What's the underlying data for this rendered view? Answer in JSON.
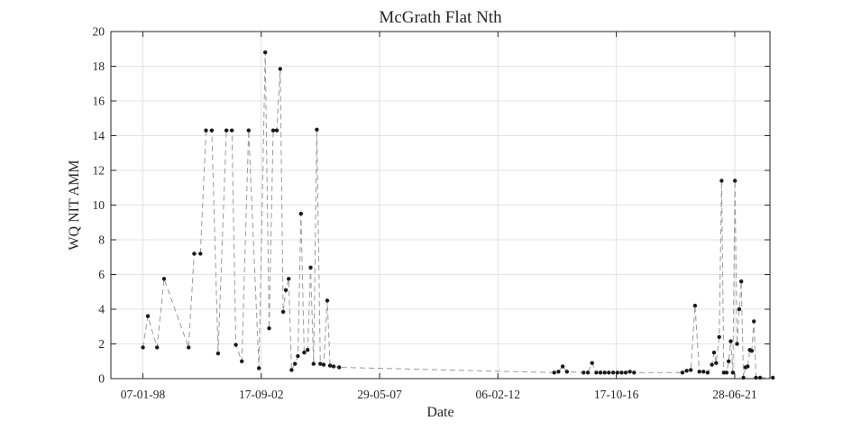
{
  "chart_data": {
    "type": "scatter",
    "title": "McGrath Flat Nth",
    "xlabel": "Date",
    "ylabel": "WQ NIT AMM",
    "x_scale": "date",
    "xlim": [
      "1996-10-01",
      "2022-11-20"
    ],
    "ylim": [
      0,
      20
    ],
    "grid": true,
    "line_style": "dashed",
    "marker": "dot",
    "x_ticks": [
      "1998-01-07",
      "2002-09-17",
      "2007-05-29",
      "2012-02-06",
      "2016-10-17",
      "2021-06-28"
    ],
    "x_tick_labels": [
      "07-01-98",
      "17-09-02",
      "29-05-07",
      "06-02-12",
      "17-10-16",
      "28-06-21"
    ],
    "y_ticks": [
      0,
      2,
      4,
      6,
      8,
      10,
      12,
      14,
      16,
      18,
      20
    ],
    "series": [
      {
        "color": "#1a1a1a",
        "line_color": "#9a9a9a",
        "points": [
          [
            "1998-01-07",
            1.8
          ],
          [
            "1998-03-20",
            3.6
          ],
          [
            "1998-08-01",
            1.8
          ],
          [
            "1998-11-10",
            5.75
          ],
          [
            "1999-11-01",
            1.8
          ],
          [
            "2000-01-20",
            7.2
          ],
          [
            "2000-04-20",
            7.2
          ],
          [
            "2000-07-10",
            14.3
          ],
          [
            "2000-10-01",
            14.3
          ],
          [
            "2001-01-01",
            1.45
          ],
          [
            "2001-05-01",
            14.3
          ],
          [
            "2001-07-20",
            14.3
          ],
          [
            "2001-09-15",
            1.95
          ],
          [
            "2001-12-10",
            1.0
          ],
          [
            "2002-03-20",
            14.3
          ],
          [
            "2002-08-15",
            0.6
          ],
          [
            "2002-11-15",
            18.8
          ],
          [
            "2003-01-10",
            2.9
          ],
          [
            "2003-03-10",
            14.3
          ],
          [
            "2003-05-01",
            14.3
          ],
          [
            "2003-06-20",
            17.85
          ],
          [
            "2003-08-01",
            3.85
          ],
          [
            "2003-09-10",
            5.1
          ],
          [
            "2003-10-20",
            5.75
          ],
          [
            "2003-12-01",
            0.5
          ],
          [
            "2004-01-20",
            0.85
          ],
          [
            "2004-03-01",
            1.3
          ],
          [
            "2004-04-15",
            9.5
          ],
          [
            "2004-06-01",
            1.5
          ],
          [
            "2004-07-20",
            1.65
          ],
          [
            "2004-09-01",
            6.4
          ],
          [
            "2004-10-15",
            0.85
          ],
          [
            "2004-12-01",
            14.35
          ],
          [
            "2005-01-20",
            0.85
          ],
          [
            "2005-03-10",
            0.8
          ],
          [
            "2005-05-01",
            4.5
          ],
          [
            "2005-06-10",
            0.75
          ],
          [
            "2005-08-01",
            0.7
          ],
          [
            "2005-10-20",
            0.65
          ],
          [
            "2014-05-01",
            0.35
          ],
          [
            "2014-07-01",
            0.4
          ],
          [
            "2014-09-01",
            0.7
          ],
          [
            "2014-11-01",
            0.4
          ],
          [
            "2015-07-01",
            0.35
          ],
          [
            "2015-09-01",
            0.35
          ],
          [
            "2015-11-01",
            0.9
          ],
          [
            "2016-01-01",
            0.35
          ],
          [
            "2016-03-01",
            0.35
          ],
          [
            "2016-05-01",
            0.35
          ],
          [
            "2016-07-01",
            0.35
          ],
          [
            "2016-09-01",
            0.35
          ],
          [
            "2016-11-01",
            0.35
          ],
          [
            "2017-01-01",
            0.35
          ],
          [
            "2017-03-01",
            0.35
          ],
          [
            "2017-05-01",
            0.4
          ],
          [
            "2017-07-01",
            0.35
          ],
          [
            "2019-06-01",
            0.35
          ],
          [
            "2019-08-01",
            0.45
          ],
          [
            "2019-10-01",
            0.5
          ],
          [
            "2019-12-01",
            4.2
          ],
          [
            "2020-02-01",
            0.4
          ],
          [
            "2020-04-01",
            0.4
          ],
          [
            "2020-06-01",
            0.35
          ],
          [
            "2020-08-01",
            0.8
          ],
          [
            "2020-09-01",
            1.5
          ],
          [
            "2020-10-01",
            0.9
          ],
          [
            "2020-11-15",
            2.4
          ],
          [
            "2020-12-20",
            11.4
          ],
          [
            "2021-01-20",
            0.35
          ],
          [
            "2021-03-01",
            0.35
          ],
          [
            "2021-04-01",
            1.0
          ],
          [
            "2021-05-01",
            2.15
          ],
          [
            "2021-06-01",
            0.35
          ],
          [
            "2021-07-01",
            11.4
          ],
          [
            "2021-08-01",
            2.0
          ],
          [
            "2021-09-01",
            4.0
          ],
          [
            "2021-10-01",
            5.6
          ],
          [
            "2021-11-01",
            0.05
          ],
          [
            "2021-12-01",
            0.65
          ],
          [
            "2022-01-01",
            0.7
          ],
          [
            "2022-02-01",
            1.65
          ],
          [
            "2022-03-01",
            1.6
          ],
          [
            "2022-04-01",
            3.3
          ],
          [
            "2022-05-01",
            0.05
          ],
          [
            "2022-07-01",
            0.05
          ],
          [
            "2023-01-01",
            0.05
          ]
        ]
      }
    ]
  }
}
